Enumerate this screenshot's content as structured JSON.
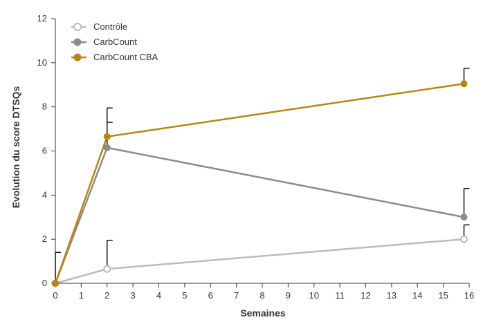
{
  "chart_data": {
    "type": "line",
    "title": "",
    "xlabel": "Semaines",
    "ylabel": "Evolution du score DTSQs",
    "xlim": [
      0,
      16
    ],
    "ylim": [
      0,
      12
    ],
    "xticks": [
      0,
      1,
      2,
      3,
      4,
      5,
      6,
      7,
      8,
      9,
      10,
      11,
      12,
      13,
      14,
      15,
      16
    ],
    "yticks": [
      0,
      2,
      4,
      6,
      8,
      10,
      12
    ],
    "grid": false,
    "legend_position": "top-left",
    "series": [
      {
        "name": "Contrôle",
        "color": "#bbbbbb",
        "marker": "open-circle",
        "x": [
          0,
          2,
          15.8
        ],
        "y": [
          0,
          0.65,
          2.0
        ],
        "error_upper": [
          1.4,
          1.95,
          2.65
        ]
      },
      {
        "name": "CarbCount",
        "color": "#8c8c8c",
        "marker": "filled-circle",
        "x": [
          0,
          2,
          15.8
        ],
        "y": [
          0,
          6.15,
          3.0
        ],
        "error_upper": [
          null,
          7.3,
          4.3
        ]
      },
      {
        "name": "CarbCount CBA",
        "color": "#b8860b",
        "marker": "filled-circle",
        "x": [
          0,
          2,
          15.8
        ],
        "y": [
          0,
          6.65,
          9.05
        ],
        "error_upper": [
          null,
          7.95,
          9.75
        ]
      }
    ]
  }
}
